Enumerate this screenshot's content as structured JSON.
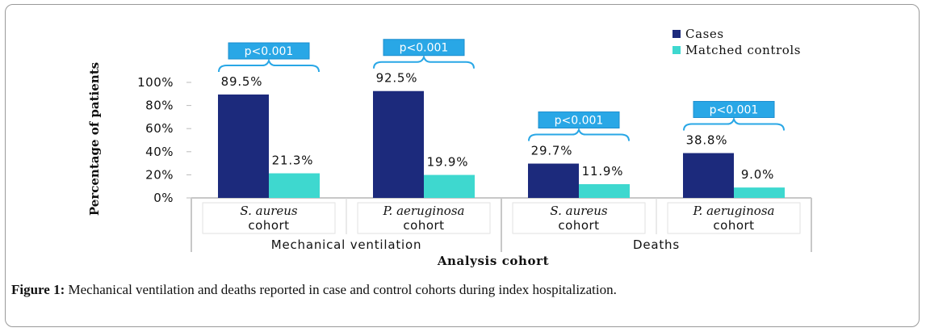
{
  "chart_data": {
    "type": "bar",
    "ylabel": "Percentage of patients",
    "xlabel": "Analysis cohort",
    "ylim": [
      0,
      100
    ],
    "yticks": [
      "0%",
      "20%",
      "40%",
      "60%",
      "80%",
      "100%"
    ],
    "yticks_values": [
      0,
      20,
      40,
      60,
      80,
      100
    ],
    "groups": [
      "Mechanical ventilation",
      "Deaths"
    ],
    "categories": [
      {
        "organism": "S. aureus",
        "cohort": "cohort",
        "group": "Mechanical ventilation"
      },
      {
        "organism": "P. aeruginosa",
        "cohort": "cohort",
        "group": "Mechanical ventilation"
      },
      {
        "organism": "S. aureus",
        "cohort": "cohort",
        "group": "Deaths"
      },
      {
        "organism": "P. aeruginosa",
        "cohort": "cohort",
        "group": "Deaths"
      }
    ],
    "series": [
      {
        "name": "Cases",
        "color": "#1c2a7c",
        "values": [
          89.5,
          92.5,
          29.7,
          38.8
        ],
        "labels": [
          "89.5%",
          "92.5%",
          "29.7%",
          "38.8%"
        ]
      },
      {
        "name": "Matched controls",
        "color": "#3ed8cf",
        "values": [
          21.3,
          19.9,
          11.9,
          9.0
        ],
        "labels": [
          "21.3%",
          "19.9%",
          "11.9%",
          "9.0%"
        ]
      }
    ],
    "annotations": [
      "p<0.001",
      "p<0.001",
      "p<0.001",
      "p<0.001"
    ],
    "annotation_color": "#29a7e6",
    "legend_position": "top-right",
    "grid": false
  },
  "caption": {
    "label": "Figure 1:",
    "text": " Mechanical ventilation and deaths reported in case and control cohorts during index hospitalization."
  }
}
